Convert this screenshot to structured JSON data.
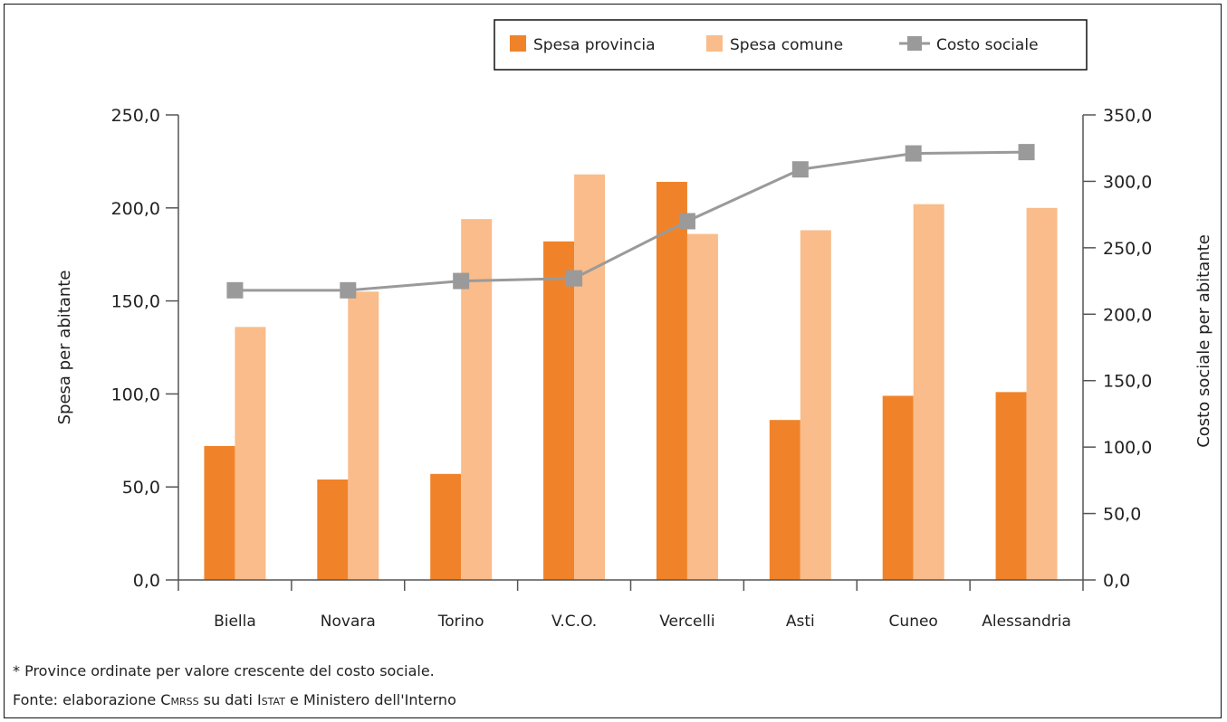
{
  "chart_data": {
    "type": "bar",
    "categories": [
      "Biella",
      "Novara",
      "Torino",
      "V.C.O.",
      "Vercelli",
      "Asti",
      "Cuneo",
      "Alessandria"
    ],
    "series": [
      {
        "name": "Spesa provincia",
        "type": "bar",
        "axis": "left",
        "color": "#F0832A",
        "values": [
          72,
          54,
          57,
          182,
          214,
          86,
          99,
          101
        ]
      },
      {
        "name": "Spesa comune",
        "type": "bar",
        "axis": "left",
        "color": "#F9BC8A",
        "values": [
          136,
          155,
          194,
          218,
          186,
          188,
          202,
          200
        ]
      },
      {
        "name": "Costo sociale",
        "type": "line",
        "axis": "right",
        "color": "#9A9A9A",
        "values": [
          218,
          218,
          225,
          227,
          270,
          309,
          321,
          322
        ]
      }
    ],
    "ylabel": "Spesa per abitante",
    "y2label": "Costo sociale per abitante",
    "ylim": [
      0,
      250
    ],
    "y2lim": [
      0,
      350
    ],
    "yticks": [
      "0,0",
      "50,0",
      "100,0",
      "150,0",
      "200,0",
      "250,0"
    ],
    "y2ticks": [
      "0,0",
      "50,0",
      "100,0",
      "150,0",
      "200,0",
      "250,0",
      "300,0",
      "350,0"
    ],
    "grid": false,
    "legend_position": "top-right"
  },
  "notes": {
    "line1": "* Province ordinate per valore crescente del costo sociale.",
    "line2_prefix": "Fonte: elaborazione ",
    "line2_org1": "Cmrss",
    "line2_mid": " su dati ",
    "line2_org2": "Istat",
    "line2_suffix": " e Ministero dell'Interno"
  }
}
